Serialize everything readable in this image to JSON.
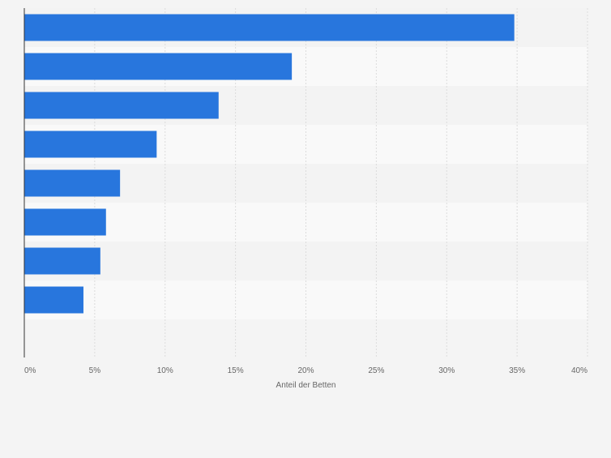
{
  "chart_data": {
    "type": "bar",
    "orientation": "horizontal",
    "categories": [
      "",
      "",
      "",
      "",
      "",
      "",
      "",
      ""
    ],
    "values": [
      34.8,
      19.0,
      13.8,
      9.4,
      6.8,
      5.8,
      5.4,
      4.2
    ],
    "xlabel": "Anteil der Betten",
    "xlim": [
      0,
      40
    ],
    "x_ticks": [
      0,
      5,
      10,
      15,
      20,
      25,
      30,
      35,
      40
    ],
    "x_tick_labels": [
      "0%",
      "5%",
      "10%",
      "15%",
      "20%",
      "25%",
      "30%",
      "35%",
      "40%"
    ],
    "grid": true,
    "bar_color": "#2876dd",
    "band_colors": [
      "#f3f3f3",
      "#f9f9f9"
    ],
    "gridline_color": "#dcdcdc",
    "axis_color": "#333333",
    "text_color": "#666666"
  }
}
